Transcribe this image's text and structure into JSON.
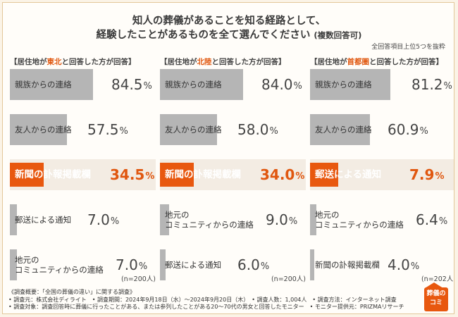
{
  "title": {
    "line1": "知人の葬儀があることを知る経路として、",
    "line2": "経験したことがあるものを全て選んでください",
    "line2_sub": "(複数回答可)"
  },
  "note": "全回答項目上位5つを抜粋",
  "chart_data": [
    {
      "type": "bar",
      "header_pre": "【居住地が",
      "header_hl": "東北",
      "header_post": "と回答した方が回答】",
      "n_label": "(n=200人)",
      "categories": [
        "親族からの連絡",
        "友人からの連絡",
        "新聞の訃報掲載欄",
        "郵送による通知",
        "地元の\nコミュニティからの連絡"
      ],
      "values": [
        84.5,
        57.5,
        34.5,
        7.0,
        7.0
      ],
      "value_labels": [
        "84.5",
        "57.5",
        "34.5",
        "7.0",
        "7.0"
      ],
      "unit": "%",
      "highlight_index": 2,
      "xlim": [
        0,
        100
      ]
    },
    {
      "type": "bar",
      "header_pre": "【居住地が",
      "header_hl": "北陸",
      "header_post": "と回答した方が回答】",
      "n_label": "(n=200人)",
      "categories": [
        "親族からの連絡",
        "友人からの連絡",
        "新聞の訃報掲載欄",
        "地元の\nコミュニティからの連絡",
        "郵送による通知"
      ],
      "values": [
        84.0,
        58.0,
        34.0,
        9.0,
        6.0
      ],
      "value_labels": [
        "84.0",
        "58.0",
        "34.0",
        "9.0",
        "6.0"
      ],
      "unit": "%",
      "highlight_index": 2,
      "xlim": [
        0,
        100
      ]
    },
    {
      "type": "bar",
      "header_pre": "【居住地が",
      "header_hl": "首都圏",
      "header_post": "と回答した方が回答】",
      "n_label": "(n=202人)",
      "categories": [
        "親族からの連絡",
        "友人からの連絡",
        "郵送による通知",
        "地元の\nコミュニティからの連絡",
        "新聞の訃報掲載欄"
      ],
      "values": [
        81.2,
        60.9,
        7.9,
        6.4,
        4.0
      ],
      "value_labels": [
        "81.2",
        "60.9",
        "7.9",
        "6.4",
        "4.0"
      ],
      "unit": "%",
      "highlight_index": 2,
      "xlim": [
        0,
        100
      ]
    }
  ],
  "survey": {
    "line1": "《調査概要：「全国の葬儀の違い」に関する調査》",
    "line2": "• 調査元：株式会社ディライト　• 調査期間：2024年9月18日（水）〜2024年9月20日（木）　• 調査人数：1,004人　• 調査方法：インターネット調査",
    "line3": "• 調査対象：調査回答時に葬儀に行ったことがある、または参列したことがある20〜70代の男女と回答したモニター　• モニター提供元：PRIZMAリサーチ"
  },
  "logo": {
    "line1": "葬儀の",
    "line2": "コミ"
  },
  "colors": {
    "accent": "#e8580f",
    "bar": "#b5b5b5",
    "highlight_bg": "#f3ece3",
    "background": "#fbf3e6"
  }
}
